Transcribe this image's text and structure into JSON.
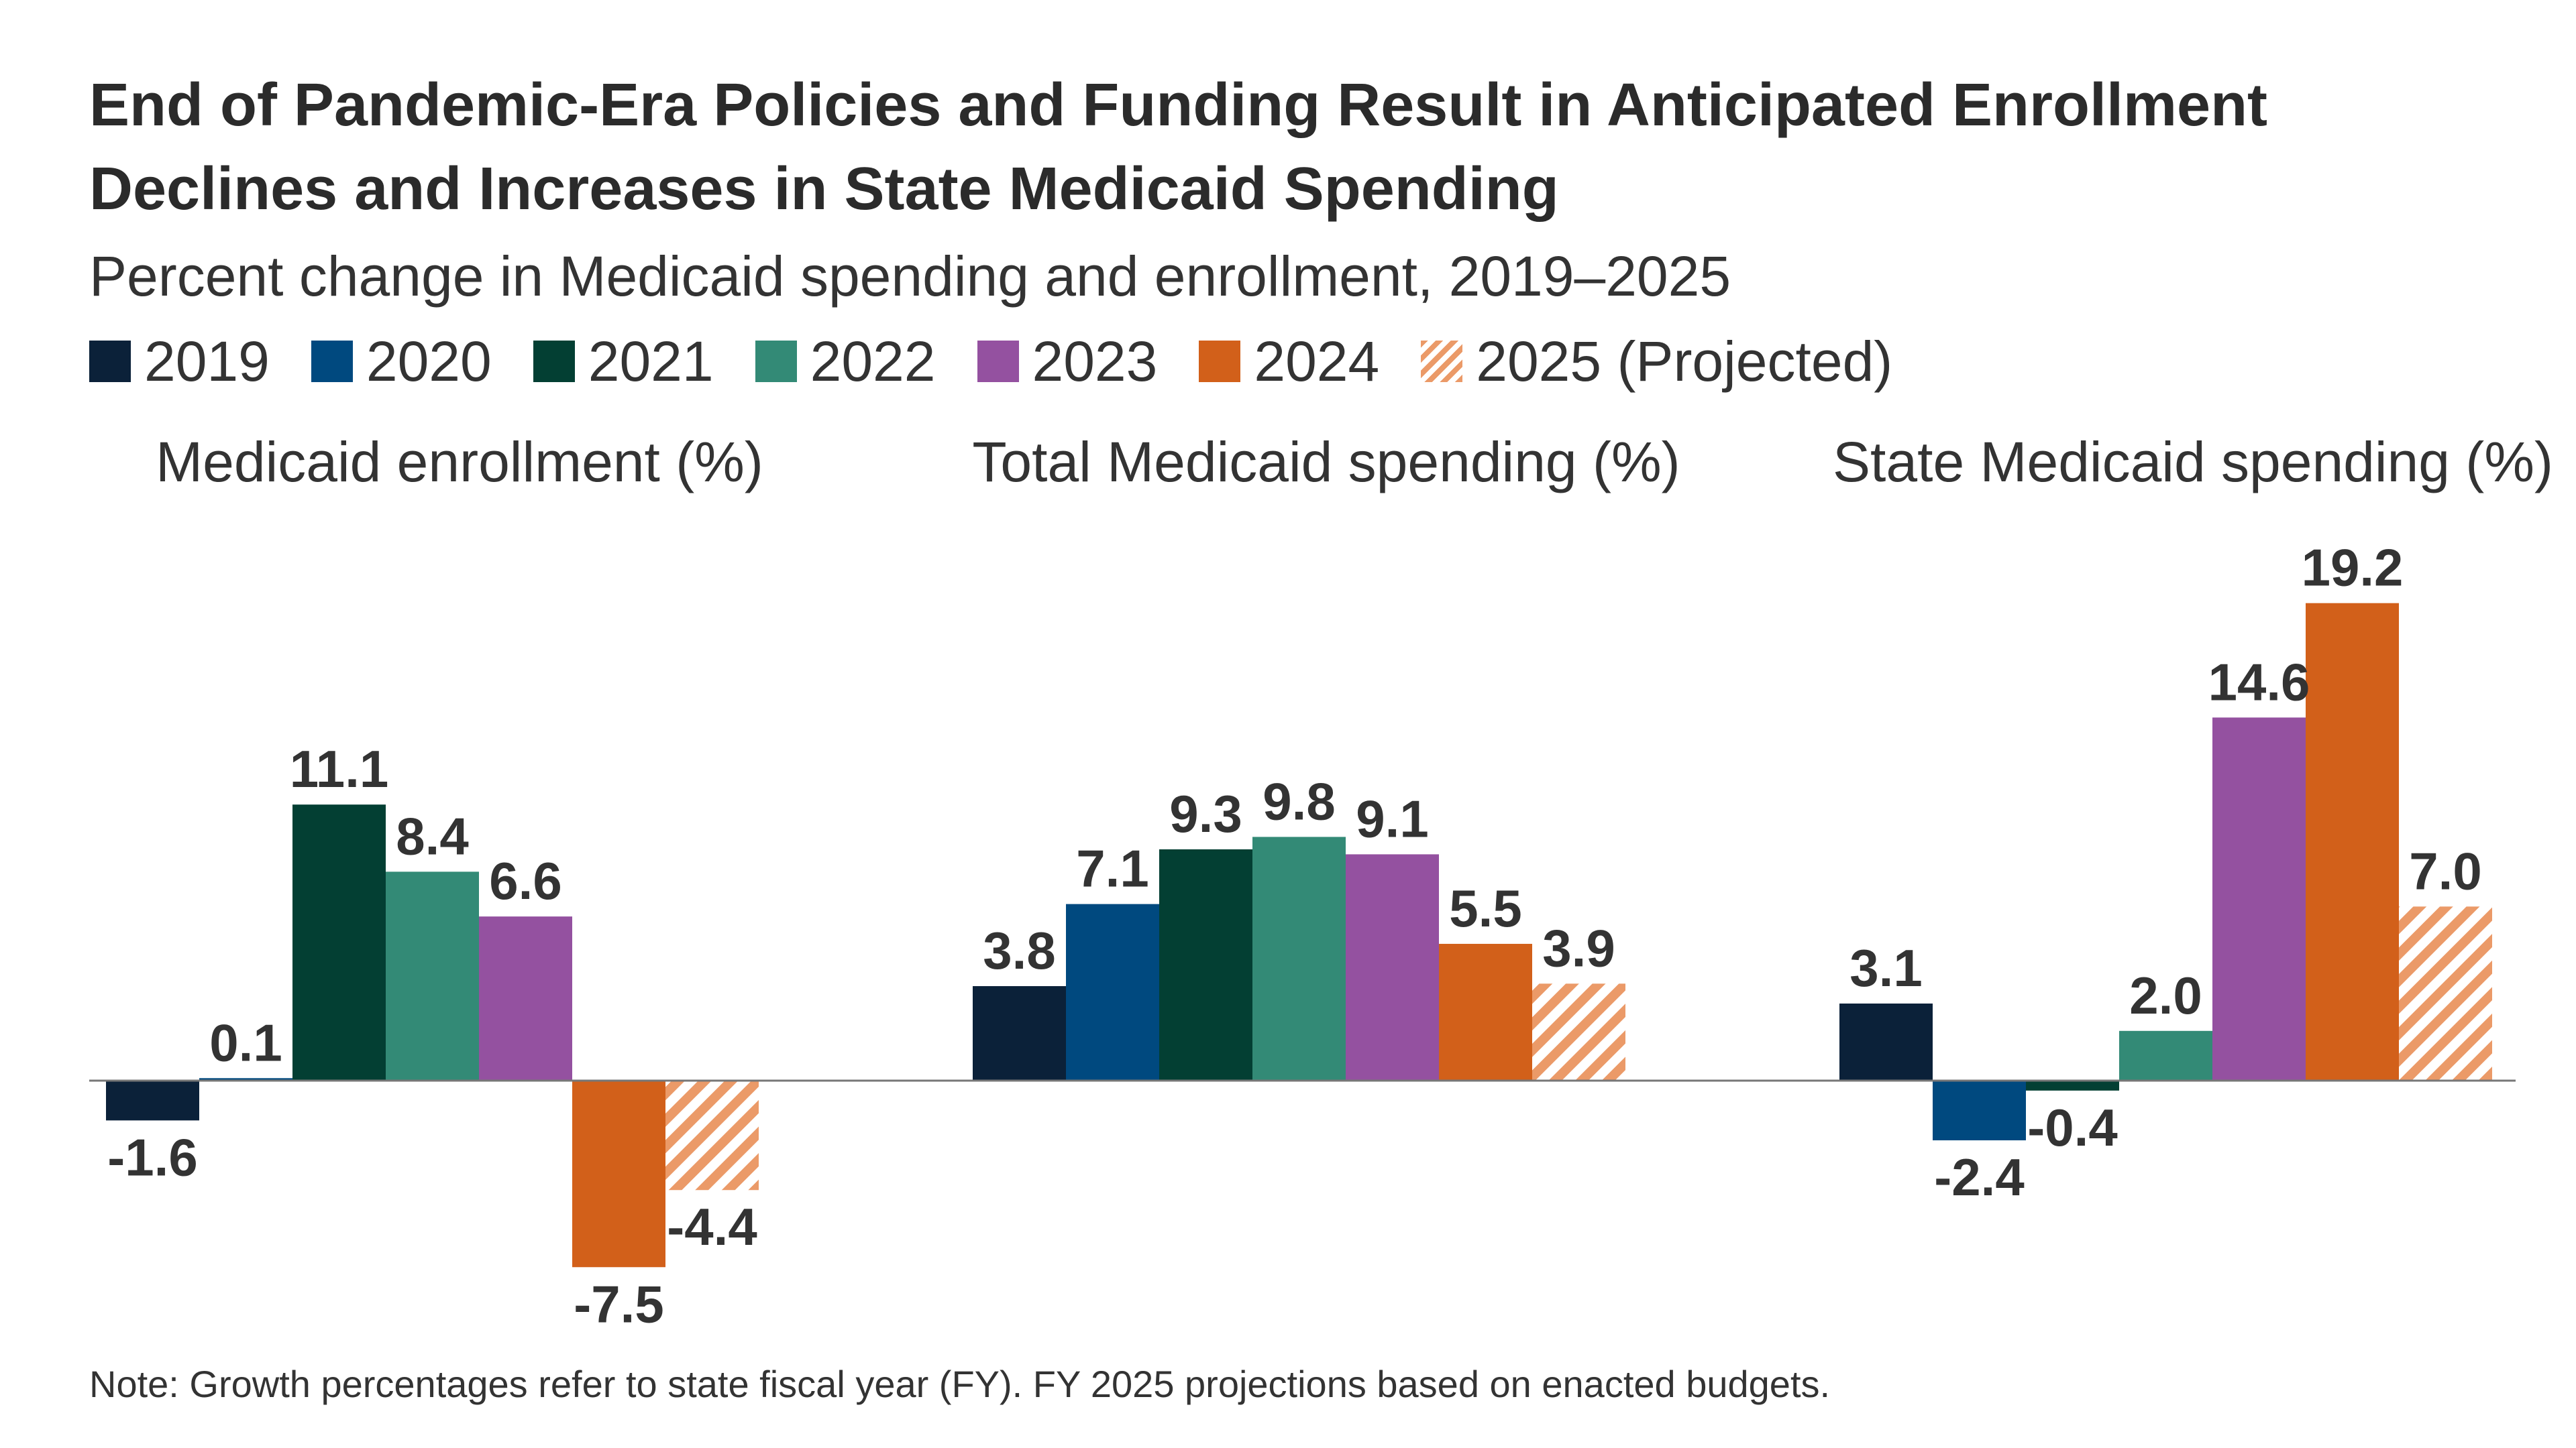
{
  "title": "End of Pandemic-Era Policies and Funding Result in Anticipated Enrollment Declines and Increases in State Medicaid Spending",
  "subtitle": "Percent change in Medicaid spending and enrollment, 2019–2025",
  "note": "Note: Growth percentages refer to state fiscal year (FY). FY 2025 projections based on enacted budgets.",
  "legend": [
    {
      "label": "2019",
      "color": "#0b2139",
      "hatched": false
    },
    {
      "label": "2020",
      "color": "#00497f",
      "hatched": false
    },
    {
      "label": "2021",
      "color": "#033f33",
      "hatched": false
    },
    {
      "label": "2022",
      "color": "#338a76",
      "hatched": false
    },
    {
      "label": "2023",
      "color": "#9451a0",
      "hatched": false
    },
    {
      "label": "2024",
      "color": "#d2601a",
      "hatched": false
    },
    {
      "label": "2025 (Projected)",
      "color": "#eb9a68",
      "hatched": true
    }
  ],
  "chart_data": {
    "type": "bar",
    "series_names": [
      "2019",
      "2020",
      "2021",
      "2022",
      "2023",
      "2024",
      "2025 (Projected)"
    ],
    "panels": [
      {
        "title": "Medicaid enrollment (%)",
        "values": [
          -1.6,
          0.1,
          11.1,
          8.4,
          6.6,
          -7.5,
          -4.4
        ]
      },
      {
        "title": "Total Medicaid spending (%)",
        "values": [
          3.8,
          7.1,
          9.3,
          9.8,
          9.1,
          5.5,
          3.9
        ]
      },
      {
        "title": "State Medicaid spending (%)",
        "values": [
          3.1,
          -2.4,
          -0.4,
          2.0,
          14.6,
          19.2,
          7.0
        ]
      }
    ],
    "grid": false,
    "legend_position": "top-left"
  }
}
